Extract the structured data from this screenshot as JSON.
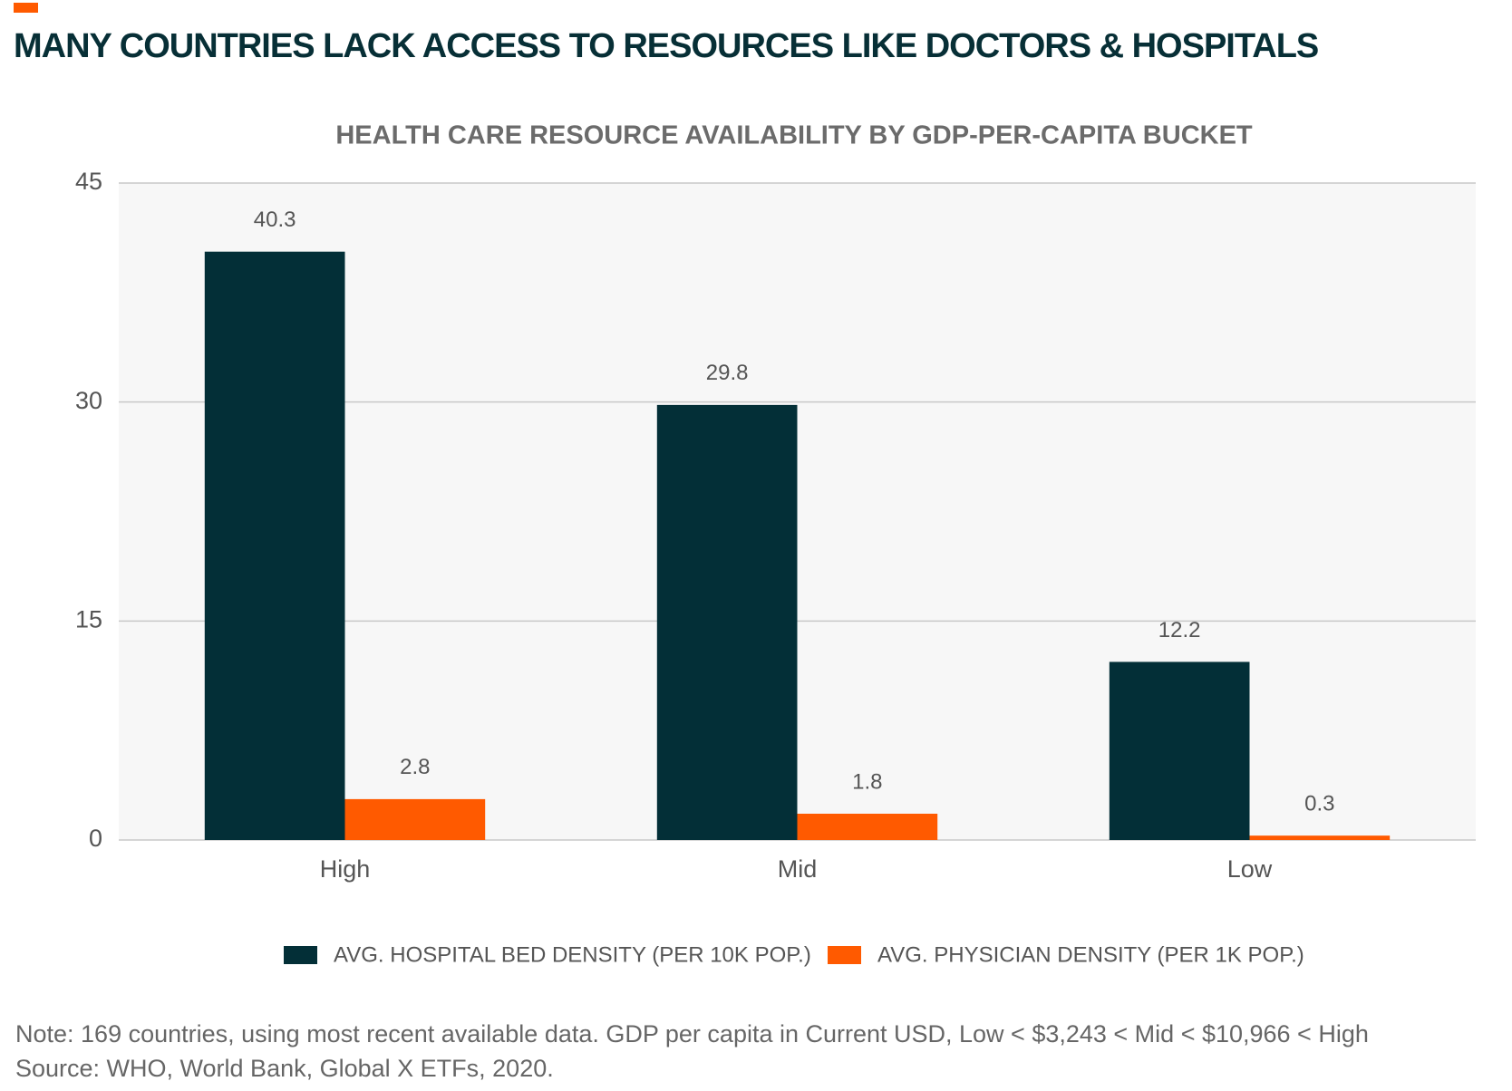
{
  "chart_data": {
    "type": "bar",
    "title": "MANY COUNTRIES LACK ACCESS TO RESOURCES LIKE DOCTORS & HOSPITALS",
    "subtitle": "HEALTH CARE RESOURCE AVAILABILITY BY GDP-PER-CAPITA BUCKET",
    "categories": [
      "High",
      "Mid",
      "Low"
    ],
    "series": [
      {
        "name": "AVG. HOSPITAL BED DENSITY (PER 10K POP.)",
        "color": "#032f37",
        "values": [
          40.3,
          29.8,
          12.2
        ]
      },
      {
        "name": "AVG. PHYSICIAN DENSITY (PER 1K POP.)",
        "color": "#ff5a00",
        "values": [
          2.8,
          1.8,
          0.3
        ]
      }
    ],
    "ylim": [
      0,
      45
    ],
    "yticks": [
      0,
      15,
      30,
      45
    ],
    "grid": true,
    "note": "Note: 169 countries, using most recent available data. GDP per capita in Current USD, Low < $3,243 < Mid < $10,966 < High",
    "source": "Source: WHO, World Bank, Global X ETFs, 2020."
  }
}
